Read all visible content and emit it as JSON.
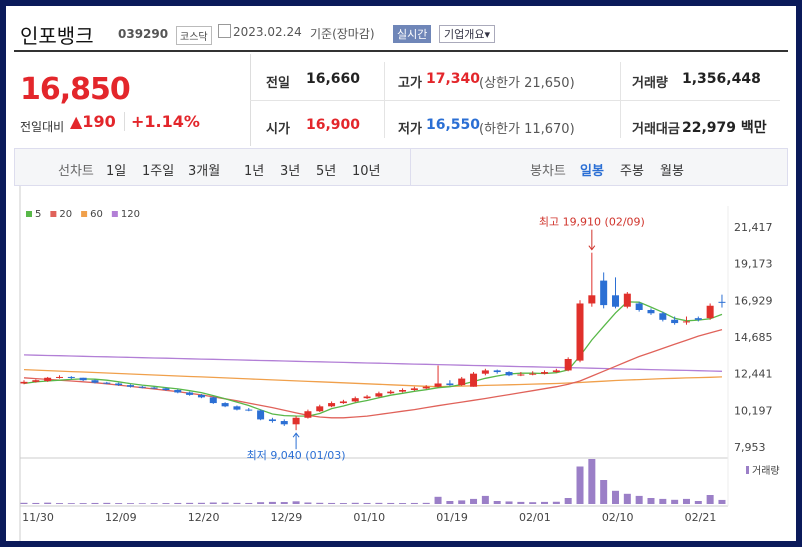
{
  "header": {
    "name": "인포뱅크",
    "code": "039290",
    "market": "코스닥",
    "date": "2023.02.24",
    "basis": "기준(장마감)",
    "realtime": "실시간",
    "overview": "기업개요▾"
  },
  "quote": {
    "price": "16,850",
    "change_label": "전일대비",
    "change": "▲190",
    "change_pct": "+1.14%",
    "rows": [
      [
        {
          "label": "전일",
          "value": "16,660"
        },
        {
          "label": "고가",
          "value": "17,340",
          "note": "(상한가 21,650)"
        },
        {
          "label": "거래량",
          "value": "1,356,448"
        }
      ],
      [
        {
          "label": "시가",
          "value": "16,900"
        },
        {
          "label": "저가",
          "value": "16,550",
          "note": "(하한가 11,670)"
        },
        {
          "label": "거래대금",
          "value": "22,979 백만"
        }
      ]
    ]
  },
  "tabs": {
    "line_label": "선차트",
    "line_periods": [
      "1일",
      "1주일",
      "3개월",
      "1년",
      "3년",
      "5년",
      "10년"
    ],
    "candle_label": "봉차트",
    "candle_periods": [
      "일봉",
      "주봉",
      "월봉"
    ]
  },
  "chart_data": {
    "type": "candlestick",
    "categories": [
      "11/30",
      null,
      null,
      null,
      null,
      null,
      null,
      "12/09",
      null,
      null,
      null,
      null,
      null,
      null,
      "12/20",
      null,
      null,
      null,
      null,
      null,
      null,
      "12/29",
      null,
      null,
      null,
      null,
      null,
      null,
      "01/10",
      null,
      null,
      null,
      null,
      null,
      null,
      "01/19",
      null,
      null,
      null,
      null,
      null,
      null,
      "02/01",
      null,
      null,
      null,
      null,
      null,
      null,
      "02/10",
      null,
      null,
      null,
      null,
      null,
      null,
      "02/21",
      null,
      null,
      null
    ],
    "open": [
      11900,
      12000,
      12050,
      12250,
      12300,
      12250,
      12100,
      11950,
      11900,
      11800,
      11700,
      11650,
      11600,
      11500,
      11350,
      11200,
      11050,
      10700,
      10500,
      10300,
      10250,
      9700,
      9600,
      9400,
      9800,
      10200,
      10500,
      10700,
      10800,
      11000,
      11100,
      11300,
      11400,
      11500,
      11600,
      11700,
      11900,
      11800,
      11700,
      12500,
      12700,
      12600,
      12400,
      12450,
      12500,
      12600,
      12700,
      13300,
      16800,
      18200,
      17300,
      16600,
      16800,
      16400,
      16200,
      15800,
      15700,
      15900,
      15900,
      16900
    ],
    "high": [
      12100,
      12150,
      12300,
      12400,
      12350,
      12250,
      12150,
      12000,
      11950,
      11850,
      11750,
      11700,
      11650,
      11550,
      11400,
      11250,
      11100,
      10750,
      10550,
      10400,
      10300,
      9800,
      9700,
      9900,
      10300,
      10600,
      10800,
      10900,
      11100,
      11200,
      11400,
      11500,
      11600,
      11700,
      11800,
      13000,
      12100,
      12300,
      12600,
      12800,
      12750,
      12650,
      12600,
      12650,
      12700,
      12800,
      13500,
      17000,
      19910,
      18700,
      18400,
      17500,
      16900,
      16500,
      16300,
      16000,
      16000,
      16000,
      16800,
      17340
    ],
    "low": [
      11850,
      11950,
      12000,
      12200,
      12150,
      12050,
      11900,
      11850,
      11750,
      11650,
      11600,
      11550,
      11450,
      11300,
      11150,
      11000,
      10650,
      10450,
      10250,
      10200,
      9650,
      9500,
      9300,
      9040,
      9750,
      10150,
      10450,
      10650,
      10750,
      10950,
      11050,
      11250,
      11350,
      11450,
      11550,
      11650,
      11750,
      11750,
      11700,
      12400,
      12500,
      12350,
      12350,
      12400,
      12450,
      12550,
      12650,
      13200,
      16600,
      16500,
      16500,
      16500,
      16300,
      16100,
      15700,
      15500,
      15500,
      15700,
      15800,
      16550
    ],
    "close": [
      12000,
      12100,
      12250,
      12300,
      12250,
      12100,
      11950,
      11900,
      11800,
      11700,
      11650,
      11600,
      11500,
      11350,
      11200,
      11050,
      10700,
      10500,
      10300,
      10250,
      9700,
      9600,
      9400,
      9800,
      10200,
      10500,
      10700,
      10800,
      11000,
      11100,
      11300,
      11400,
      11500,
      11600,
      11700,
      11900,
      11800,
      12200,
      12500,
      12700,
      12600,
      12400,
      12450,
      12500,
      12600,
      12700,
      13400,
      16800,
      17300,
      16700,
      16600,
      17400,
      16400,
      16200,
      15800,
      15600,
      15700,
      15800,
      16660,
      16850
    ],
    "up_color": "#e0302b",
    "down_color": "#2b6fd4",
    "series": [
      {
        "name": "5",
        "color": "#58b848",
        "values": [
          11900,
          12000,
          12050,
          12100,
          12150,
          12180,
          12160,
          12100,
          12000,
          11890,
          11800,
          11730,
          11650,
          11570,
          11460,
          11340,
          11160,
          10960,
          10760,
          10550,
          10290,
          10030,
          9930,
          9910,
          9900,
          10060,
          10360,
          10520,
          10720,
          10860,
          11020,
          11180,
          11300,
          11420,
          11520,
          11640,
          11700,
          11840,
          12020,
          12220,
          12360,
          12480,
          12530,
          12530,
          12510,
          12560,
          12730,
          13580,
          14560,
          15400,
          16220,
          16900,
          16880,
          16580,
          16260,
          15890,
          15740,
          15780,
          15860,
          16130
        ]
      },
      {
        "name": "20",
        "color": "#e0625a",
        "values": [
          12250,
          12200,
          12150,
          12100,
          12050,
          12000,
          11950,
          11880,
          11800,
          11720,
          11640,
          11560,
          11480,
          11400,
          11300,
          11200,
          11080,
          10960,
          10840,
          10700,
          10560,
          10420,
          10260,
          10100,
          9950,
          9850,
          9800,
          9800,
          9850,
          9900,
          10000,
          10100,
          10200,
          10300,
          10420,
          10540,
          10650,
          10760,
          10870,
          10980,
          11100,
          11220,
          11340,
          11460,
          11580,
          11700,
          11850,
          12050,
          12350,
          12650,
          12950,
          13250,
          13550,
          13800,
          14050,
          14300,
          14550,
          14800,
          15000,
          15200
        ]
      },
      {
        "name": "60",
        "color": "#f0a04b",
        "values": [
          12750,
          12720,
          12690,
          12660,
          12630,
          12600,
          12570,
          12540,
          12510,
          12480,
          12450,
          12420,
          12390,
          12360,
          12330,
          12300,
          12270,
          12240,
          12210,
          12180,
          12150,
          12120,
          12090,
          12060,
          12030,
          12000,
          11970,
          11940,
          11910,
          11880,
          11850,
          11820,
          11790,
          11760,
          11730,
          11700,
          11720,
          11740,
          11760,
          11780,
          11800,
          11820,
          11840,
          11860,
          11880,
          11900,
          11930,
          11960,
          12000,
          12040,
          12080,
          12110,
          12140,
          12170,
          12200,
          12220,
          12240,
          12260,
          12280,
          12300
        ]
      },
      {
        "name": "120",
        "color": "#b27fd6",
        "values": [
          13650,
          13633,
          13616,
          13599,
          13582,
          13565,
          13548,
          13531,
          13514,
          13497,
          13480,
          13463,
          13446,
          13429,
          13412,
          13395,
          13378,
          13361,
          13344,
          13327,
          13310,
          13293,
          13276,
          13259,
          13242,
          13225,
          13208,
          13191,
          13174,
          13157,
          13140,
          13123,
          13106,
          13089,
          13072,
          13055,
          13038,
          13021,
          13004,
          12987,
          12970,
          12953,
          12936,
          12919,
          12902,
          12885,
          12868,
          12851,
          12834,
          12817,
          12800,
          12783,
          12766,
          12749,
          12732,
          12715,
          12698,
          12681,
          12664,
          12647
        ]
      }
    ],
    "volume": {
      "name": "거래량",
      "color": "#9b7fc7",
      "values": [
        400000,
        350000,
        450000,
        300000,
        280000,
        300000,
        350000,
        380000,
        300000,
        280000,
        250000,
        280000,
        300000,
        350000,
        380000,
        400000,
        500000,
        450000,
        380000,
        350000,
        600000,
        700000,
        650000,
        900000,
        500000,
        400000,
        350000,
        320000,
        400000,
        350000,
        380000,
        350000,
        320000,
        350000,
        380000,
        2400000,
        1000000,
        1200000,
        1700000,
        2700000,
        1000000,
        850000,
        700000,
        600000,
        700000,
        750000,
        2000000,
        12500000,
        15000000,
        8000000,
        4400000,
        3400000,
        2700000,
        2000000,
        1700000,
        1400000,
        1700000,
        1000000,
        3000000,
        1356448
      ]
    },
    "annotations": [
      {
        "text": "최고 19,910 (02/09)",
        "index": 48,
        "value": 19910,
        "color": "#d0342c"
      },
      {
        "text": "최저 9,040 (01/03)",
        "index": 23,
        "value": 9040,
        "color": "#2b6fd4"
      }
    ],
    "ylim": [
      7520,
      22340
    ],
    "yticks": [
      {
        "value": 21417,
        "label": "21,417"
      },
      {
        "value": 19173,
        "label": "19,173"
      },
      {
        "value": 16929,
        "label": "16,929"
      },
      {
        "value": 14685,
        "label": "14,685"
      },
      {
        "value": 12441,
        "label": "12,441"
      },
      {
        "value": 10197,
        "label": "10,197"
      },
      {
        "value": 7953,
        "label": "7,953"
      }
    ],
    "grid": false
  }
}
